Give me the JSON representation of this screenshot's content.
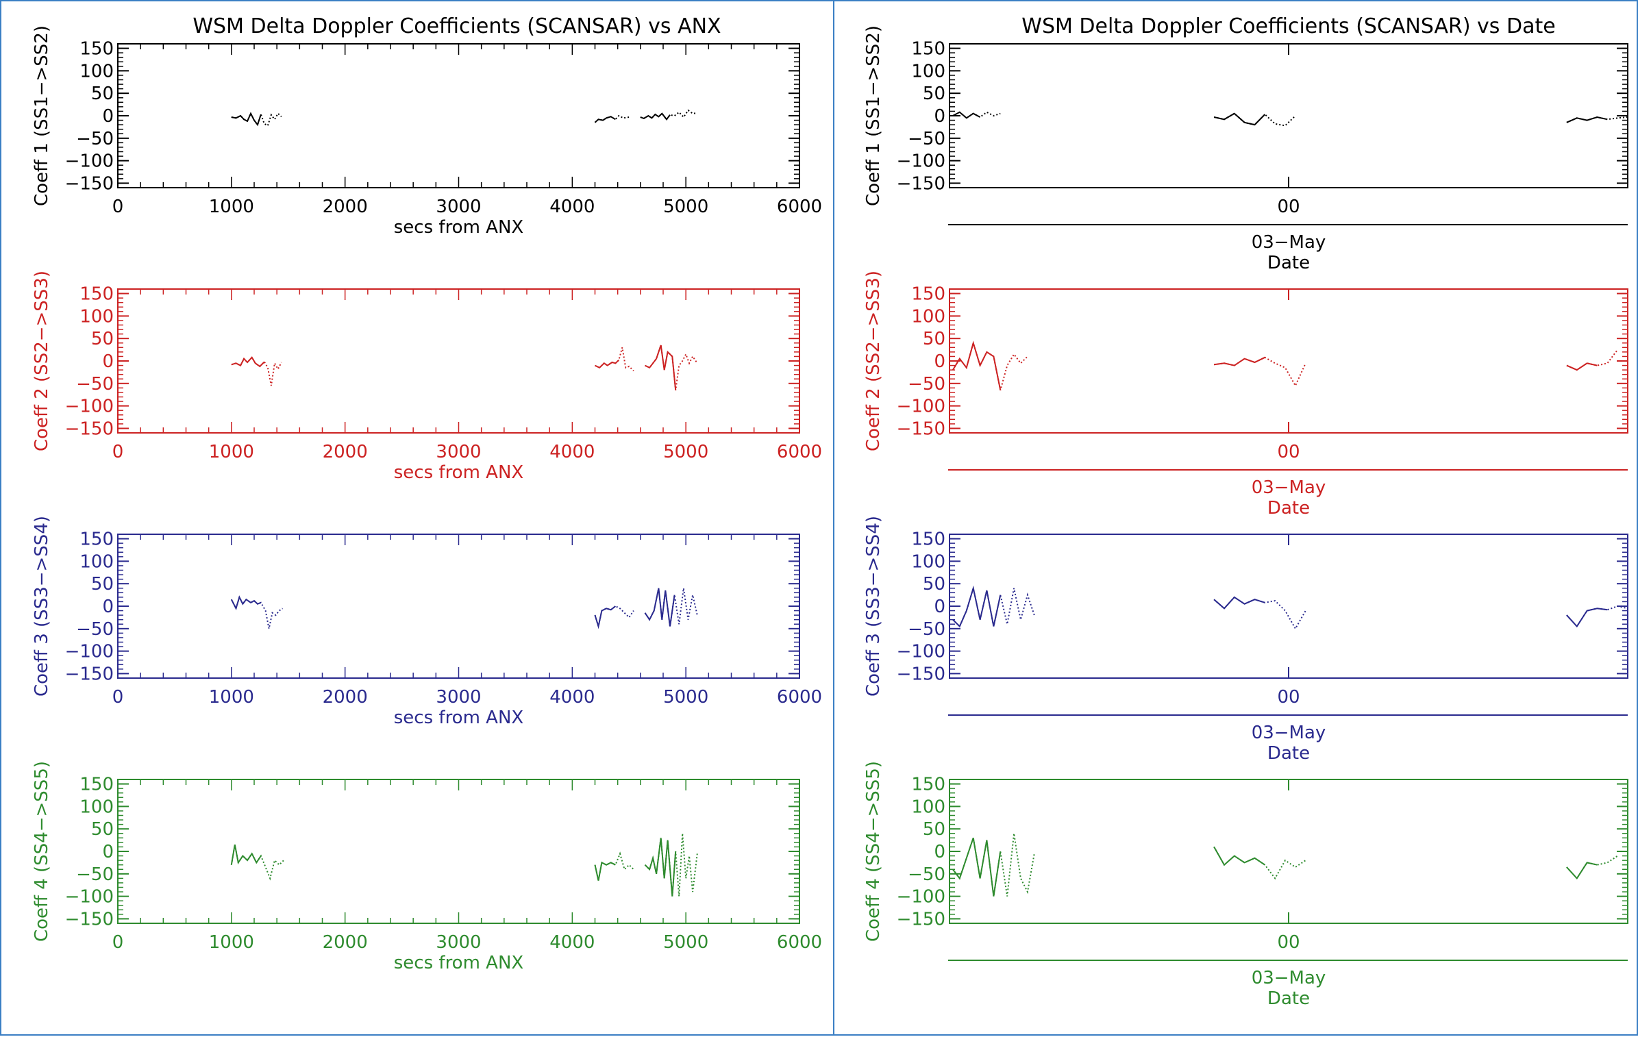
{
  "colors": {
    "black": "#000000",
    "red": "#cc2222",
    "blue": "#2a2a8e",
    "green": "#2e8b2e",
    "frame": "#3b7fc4"
  },
  "left": {
    "title": "WSM Delta Doppler Coefficients (SCANSAR) vs ANX",
    "xlabel": "secs from ANX"
  },
  "right": {
    "title": "WSM Delta Doppler Coefficients (SCANSAR) vs Date",
    "xtick": "00",
    "date_label": "03−May",
    "xlabel": "Date"
  },
  "chart_data": [
    {
      "type": "line",
      "title": "WSM Delta Doppler Coefficients (SCANSAR) vs ANX",
      "xlabel": "secs from ANX",
      "xlim": [
        0,
        6000
      ],
      "ylim": [
        -160,
        160
      ],
      "xticks": [
        "0",
        "1000",
        "2000",
        "3000",
        "4000",
        "5000",
        "6000"
      ],
      "yticks": [
        "150",
        "100",
        "50",
        "0",
        "−50",
        "−100",
        "−150"
      ],
      "grid": false,
      "panels": [
        {
          "ylabel": "Coeff 1 (SS1−>SS2)",
          "color": "black",
          "segments": [
            {
              "x": [
                1000,
                1040,
                1080,
                1110,
                1140,
                1170,
                1200,
                1230,
                1260,
                1290,
                1320,
                1350,
                1380,
                1410,
                1440
              ],
              "y": [
                -3,
                -5,
                0,
                -8,
                -12,
                5,
                -10,
                -20,
                3,
                -18,
                -22,
                2,
                -8,
                5,
                -2
              ]
            },
            {
              "x": [
                4200,
                4230,
                4270,
                4300,
                4340,
                4380,
                4410,
                4450,
                4500
              ],
              "y": [
                -15,
                -8,
                -10,
                -5,
                -2,
                -8,
                0,
                -5,
                -3
              ]
            },
            {
              "x": [
                4600,
                4630,
                4670,
                4700,
                4730,
                4760,
                4790,
                4830,
                4860,
                4900,
                4940,
                4980,
                5020,
                5060,
                5100
              ],
              "y": [
                -3,
                -6,
                0,
                -5,
                3,
                -2,
                5,
                -8,
                2,
                0,
                8,
                -3,
                12,
                5,
                6
              ]
            }
          ]
        },
        {
          "ylabel": "Coeff 2 (SS2−>SS3)",
          "color": "red",
          "segments": [
            {
              "x": [
                1000,
                1040,
                1080,
                1110,
                1140,
                1180,
                1210,
                1250,
                1290,
                1320,
                1350,
                1380,
                1410,
                1440
              ],
              "y": [
                -8,
                -5,
                -10,
                5,
                -3,
                8,
                -5,
                -12,
                -2,
                -15,
                -55,
                -5,
                -18,
                -3
              ]
            },
            {
              "x": [
                4200,
                4240,
                4280,
                4310,
                4350,
                4380,
                4410,
                4440,
                4470,
                4500,
                4540
              ],
              "y": [
                -10,
                -15,
                -5,
                -10,
                -3,
                -5,
                2,
                30,
                -15,
                -12,
                -22
              ]
            },
            {
              "x": [
                4640,
                4680,
                4710,
                4740,
                4780,
                4810,
                4840,
                4880,
                4910,
                4940,
                4970,
                5000,
                5030,
                5060,
                5100
              ],
              "y": [
                -10,
                -15,
                -5,
                5,
                35,
                -20,
                20,
                10,
                -65,
                -10,
                0,
                15,
                -5,
                10,
                -5
              ]
            }
          ]
        },
        {
          "ylabel": "Coeff 3 (SS3−>SS4)",
          "color": "blue",
          "segments": [
            {
              "x": [
                1000,
                1040,
                1070,
                1100,
                1130,
                1170,
                1200,
                1230,
                1260,
                1300,
                1330,
                1360,
                1390,
                1420,
                1450
              ],
              "y": [
                15,
                -5,
                20,
                5,
                15,
                8,
                12,
                5,
                8,
                -10,
                -50,
                -15,
                -20,
                -10,
                -5
              ]
            },
            {
              "x": [
                4200,
                4230,
                4260,
                4300,
                4340,
                4380,
                4420,
                4460,
                4500,
                4540
              ],
              "y": [
                -20,
                -45,
                -10,
                -5,
                -8,
                0,
                -5,
                -15,
                -25,
                -10
              ]
            },
            {
              "x": [
                4640,
                4680,
                4720,
                4760,
                4790,
                4820,
                4860,
                4900,
                4940,
                4980,
                5020,
                5060,
                5100
              ],
              "y": [
                -15,
                -30,
                -10,
                40,
                -30,
                35,
                -45,
                25,
                -40,
                40,
                -30,
                25,
                -20
              ]
            }
          ]
        },
        {
          "ylabel": "Coeff 4 (SS4−>SS5)",
          "color": "green",
          "segments": [
            {
              "x": [
                1000,
                1030,
                1060,
                1100,
                1140,
                1180,
                1220,
                1260,
                1300,
                1340,
                1380,
                1420,
                1460
              ],
              "y": [
                -30,
                15,
                -25,
                -10,
                -20,
                -5,
                -25,
                -10,
                -35,
                -60,
                -20,
                -30,
                -20
              ]
            },
            {
              "x": [
                4200,
                4230,
                4260,
                4300,
                4340,
                4380,
                4420,
                4460,
                4500,
                4540
              ],
              "y": [
                -30,
                -65,
                -25,
                -30,
                -25,
                -30,
                -5,
                -40,
                -30,
                -40
              ]
            },
            {
              "x": [
                4640,
                4680,
                4710,
                4740,
                4780,
                4810,
                4840,
                4880,
                4910,
                4940,
                4970,
                5000,
                5030,
                5060,
                5100
              ],
              "y": [
                -30,
                -40,
                -15,
                -50,
                30,
                -60,
                25,
                -100,
                0,
                -100,
                40,
                -60,
                -10,
                -90,
                -5
              ]
            }
          ]
        }
      ]
    },
    {
      "type": "line",
      "title": "WSM Delta Doppler Coefficients (SCANSAR) vs Date",
      "xlabel": "Date",
      "xlim": [
        0,
        100
      ],
      "ylim": [
        -160,
        160
      ],
      "xticks": [
        "00"
      ],
      "date_label": "03−May",
      "yticks": [
        "150",
        "100",
        "50",
        "0",
        "−50",
        "−100",
        "−150"
      ],
      "grid": false,
      "panels": [
        {
          "ylabel": "Coeff 1 (SS1−>SS2)",
          "color": "black",
          "segments": [
            {
              "x": [
                0.5,
                1.5,
                2.5,
                3.5,
                4.5,
                5.5,
                6.5,
                7.5
              ],
              "y": [
                0,
                8,
                -5,
                5,
                -3,
                8,
                0,
                5
              ]
            },
            {
              "x": [
                39,
                40.5,
                42,
                43.5,
                45,
                46.5,
                48,
                49.5,
                51
              ],
              "y": [
                -3,
                -8,
                5,
                -15,
                -20,
                3,
                -18,
                -22,
                0
              ]
            },
            {
              "x": [
                91,
                92.5,
                94,
                95.5,
                97,
                98.5,
                100
              ],
              "y": [
                -15,
                -5,
                -10,
                -3,
                -8,
                -5,
                -3
              ]
            }
          ]
        },
        {
          "ylabel": "Coeff 2 (SS2−>SS3)",
          "color": "red",
          "segments": [
            {
              "x": [
                0.5,
                1.5,
                2.5,
                3.5,
                4.5,
                5.5,
                6.5,
                7.5,
                8.5,
                9.5,
                10.5,
                11.5
              ],
              "y": [
                -20,
                5,
                -15,
                40,
                -10,
                20,
                10,
                -65,
                -10,
                15,
                -5,
                10
              ]
            },
            {
              "x": [
                39,
                40.5,
                42,
                43.5,
                45,
                46.5,
                48,
                49.5,
                51,
                52.5
              ],
              "y": [
                -8,
                -5,
                -10,
                5,
                -3,
                8,
                -5,
                -15,
                -55,
                -5
              ]
            },
            {
              "x": [
                91,
                92.5,
                94,
                95.5,
                97,
                98.5
              ],
              "y": [
                -10,
                -20,
                -5,
                -10,
                -5,
                25
              ]
            }
          ]
        },
        {
          "ylabel": "Coeff 3 (SS3−>SS4)",
          "color": "blue",
          "segments": [
            {
              "x": [
                0.5,
                1.5,
                2.5,
                3.5,
                4.5,
                5.5,
                6.5,
                7.5,
                8.5,
                9.5,
                10.5,
                11.5,
                12.5
              ],
              "y": [
                -30,
                -45,
                -10,
                40,
                -30,
                35,
                -45,
                25,
                -40,
                40,
                -30,
                25,
                -20
              ]
            },
            {
              "x": [
                39,
                40.5,
                42,
                43.5,
                45,
                46.5,
                48,
                49.5,
                51,
                52.5
              ],
              "y": [
                15,
                -5,
                20,
                5,
                15,
                8,
                12,
                -10,
                -50,
                -10
              ]
            },
            {
              "x": [
                91,
                92.5,
                94,
                95.5,
                97,
                98.5,
                100
              ],
              "y": [
                -20,
                -45,
                -10,
                -5,
                -8,
                0,
                -5
              ]
            }
          ]
        },
        {
          "ylabel": "Coeff 4 (SS4−>SS5)",
          "color": "green",
          "segments": [
            {
              "x": [
                0.5,
                1.5,
                2.5,
                3.5,
                4.5,
                5.5,
                6.5,
                7.5,
                8.5,
                9.5,
                10.5,
                11.5,
                12.5
              ],
              "y": [
                -40,
                -60,
                -15,
                30,
                -60,
                25,
                -100,
                0,
                -100,
                40,
                -60,
                -90,
                -5
              ]
            },
            {
              "x": [
                39,
                40.5,
                42,
                43.5,
                45,
                46.5,
                48,
                49.5,
                51,
                52.5
              ],
              "y": [
                10,
                -30,
                -10,
                -25,
                -15,
                -30,
                -60,
                -20,
                -35,
                -20
              ]
            },
            {
              "x": [
                91,
                92.5,
                94,
                95.5,
                97,
                98.5
              ],
              "y": [
                -35,
                -60,
                -25,
                -30,
                -25,
                -10
              ]
            }
          ]
        }
      ]
    }
  ]
}
